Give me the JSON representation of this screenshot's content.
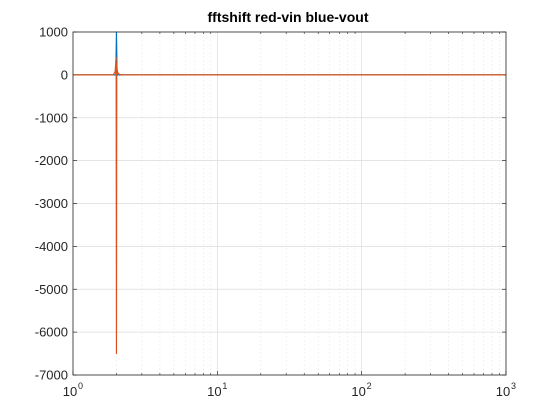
{
  "chart_data": {
    "type": "line",
    "title": "fftshift red-vin blue-vout",
    "xlabel": "",
    "ylabel": "",
    "xscale": "log",
    "xlim": [
      1,
      1000
    ],
    "ylim": [
      -7000,
      1000
    ],
    "grid": "major and minor on x, major on y",
    "legend": "none",
    "x_ticks": [
      {
        "base": "10",
        "exp": "0",
        "value": 1
      },
      {
        "base": "10",
        "exp": "1",
        "value": 10
      },
      {
        "base": "10",
        "exp": "2",
        "value": 100
      },
      {
        "base": "10",
        "exp": "3",
        "value": 1000
      }
    ],
    "y_ticks": [
      {
        "label": "1000",
        "value": 1000
      },
      {
        "label": "0",
        "value": 0
      },
      {
        "label": "-1000",
        "value": -1000
      },
      {
        "label": "-2000",
        "value": -2000
      },
      {
        "label": "-3000",
        "value": -3000
      },
      {
        "label": "-4000",
        "value": -4000
      },
      {
        "label": "-5000",
        "value": -5000
      },
      {
        "label": "-6000",
        "value": -6000
      },
      {
        "label": "-7000",
        "value": -7000
      }
    ],
    "series": [
      {
        "color": "#0072BD",
        "x": [
          1,
          1.9,
          1.98,
          2.0,
          2.02,
          2.1,
          2.3,
          1000
        ],
        "y": [
          0,
          0,
          0,
          1000,
          0,
          0,
          0,
          0
        ]
      },
      {
        "color": "#D95319",
        "x": [
          1,
          1.9,
          1.96,
          1.99,
          2.0,
          2.01,
          2.02,
          2.05,
          2.1,
          2.2,
          2.5,
          1000
        ],
        "y": [
          0,
          0,
          80,
          400,
          -6500,
          250,
          120,
          40,
          10,
          0,
          0,
          0
        ]
      }
    ]
  }
}
